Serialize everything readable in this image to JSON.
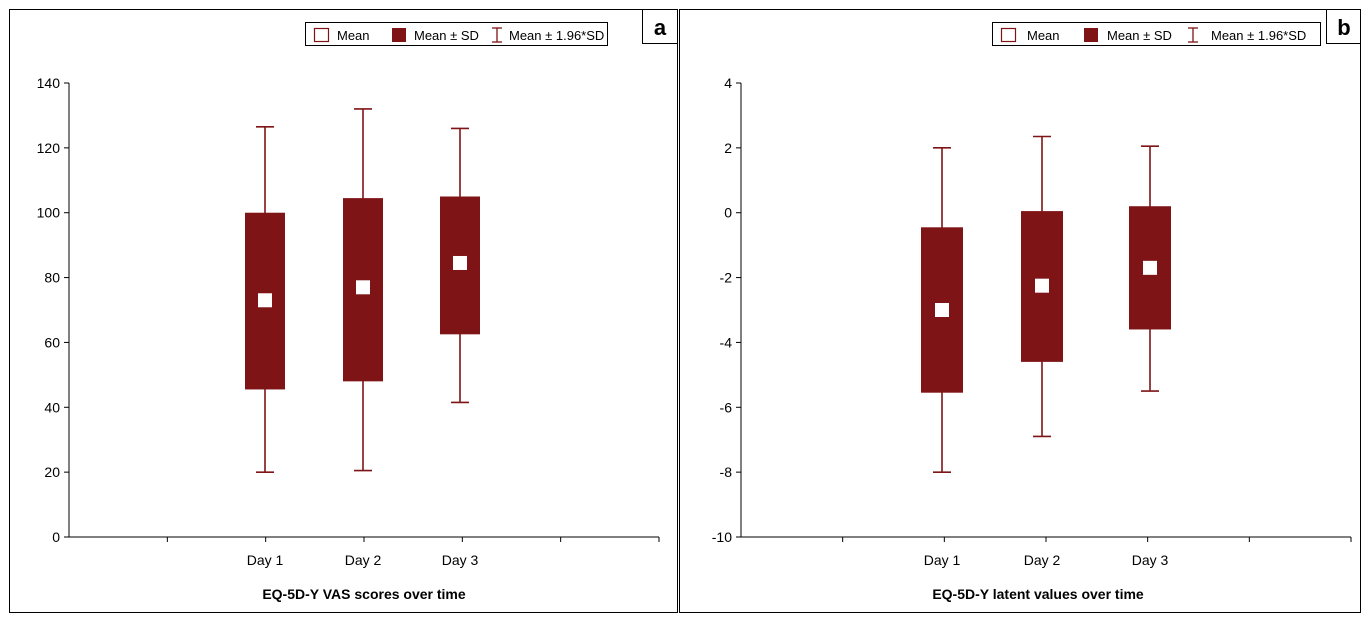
{
  "legend": {
    "mean_label": "Mean",
    "sd_label": "Mean ± SD",
    "ci_label": "Mean ± 1.96*SD"
  },
  "colors": {
    "box": "#7e1416",
    "mean_marker": "#ffffff",
    "axis": "#000000",
    "frame": "#000000"
  },
  "chart_data": [
    {
      "type": "box",
      "panel_letter": "a",
      "title": "EQ-5D-Y VAS scores over time",
      "xlabel": "EQ-5D-Y VAS scores over time",
      "ylabel": "",
      "ylim": [
        0,
        140
      ],
      "yticks": [
        0,
        20,
        40,
        60,
        80,
        100,
        120,
        140
      ],
      "categories": [
        "Day 1",
        "Day 2",
        "Day 3"
      ],
      "series": [
        {
          "mean": [
            73,
            77,
            84.5
          ],
          "sd_low": [
            45.5,
            48,
            62.5
          ],
          "sd_high": [
            100,
            104.5,
            105
          ],
          "ci_low": [
            20,
            20.5,
            41.5
          ],
          "ci_high": [
            126.5,
            132,
            126
          ]
        }
      ],
      "grid": false,
      "legend_position": "top-right"
    },
    {
      "type": "box",
      "panel_letter": "b",
      "title": "EQ-5D-Y latent values over time",
      "xlabel": "EQ-5D-Y latent values over time",
      "ylabel": "",
      "ylim": [
        -10,
        4
      ],
      "yticks": [
        -10,
        -8,
        -6,
        -4,
        -2,
        0,
        2,
        4
      ],
      "categories": [
        "Day 1",
        "Day 2",
        "Day 3"
      ],
      "series": [
        {
          "mean": [
            -3,
            -2.25,
            -1.7
          ],
          "sd_low": [
            -5.55,
            -4.6,
            -3.6
          ],
          "sd_high": [
            -0.45,
            0.05,
            0.2
          ],
          "ci_low": [
            -8,
            -6.9,
            -5.5
          ],
          "ci_high": [
            2,
            2.35,
            2.05
          ]
        }
      ],
      "grid": false,
      "legend_position": "top-right"
    }
  ]
}
